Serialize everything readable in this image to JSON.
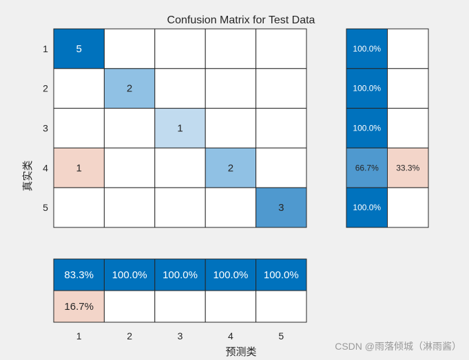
{
  "chart_data": {
    "type": "heatmap",
    "title": "Confusion Matrix for Test Data",
    "xlabel": "预测类",
    "ylabel": "真实类",
    "row_labels": [
      "1",
      "2",
      "3",
      "4",
      "5"
    ],
    "col_labels": [
      "1",
      "2",
      "3",
      "4",
      "5"
    ],
    "matrix": [
      [
        5,
        0,
        0,
        0,
        0
      ],
      [
        0,
        2,
        0,
        0,
        0
      ],
      [
        0,
        0,
        1,
        0,
        0
      ],
      [
        1,
        0,
        0,
        2,
        0
      ],
      [
        0,
        0,
        0,
        0,
        3
      ]
    ],
    "row_summary": [
      [
        "100.0%",
        ""
      ],
      [
        "100.0%",
        ""
      ],
      [
        "100.0%",
        ""
      ],
      [
        "66.7%",
        "33.3%"
      ],
      [
        "100.0%",
        ""
      ]
    ],
    "column_summary": [
      [
        "83.3%",
        "100.0%",
        "100.0%",
        "100.0%",
        "100.0%"
      ],
      [
        "16.7%",
        "",
        "",
        "",
        ""
      ]
    ],
    "colors": {
      "correct_strong": "#0072bd",
      "correct_mid": "#4f99cf",
      "correct_light": "#c1dbef",
      "error": "#f3d5c9",
      "background": "#f0f0f0"
    }
  },
  "watermark": "CSDN @雨落倾城（淋雨酱）"
}
